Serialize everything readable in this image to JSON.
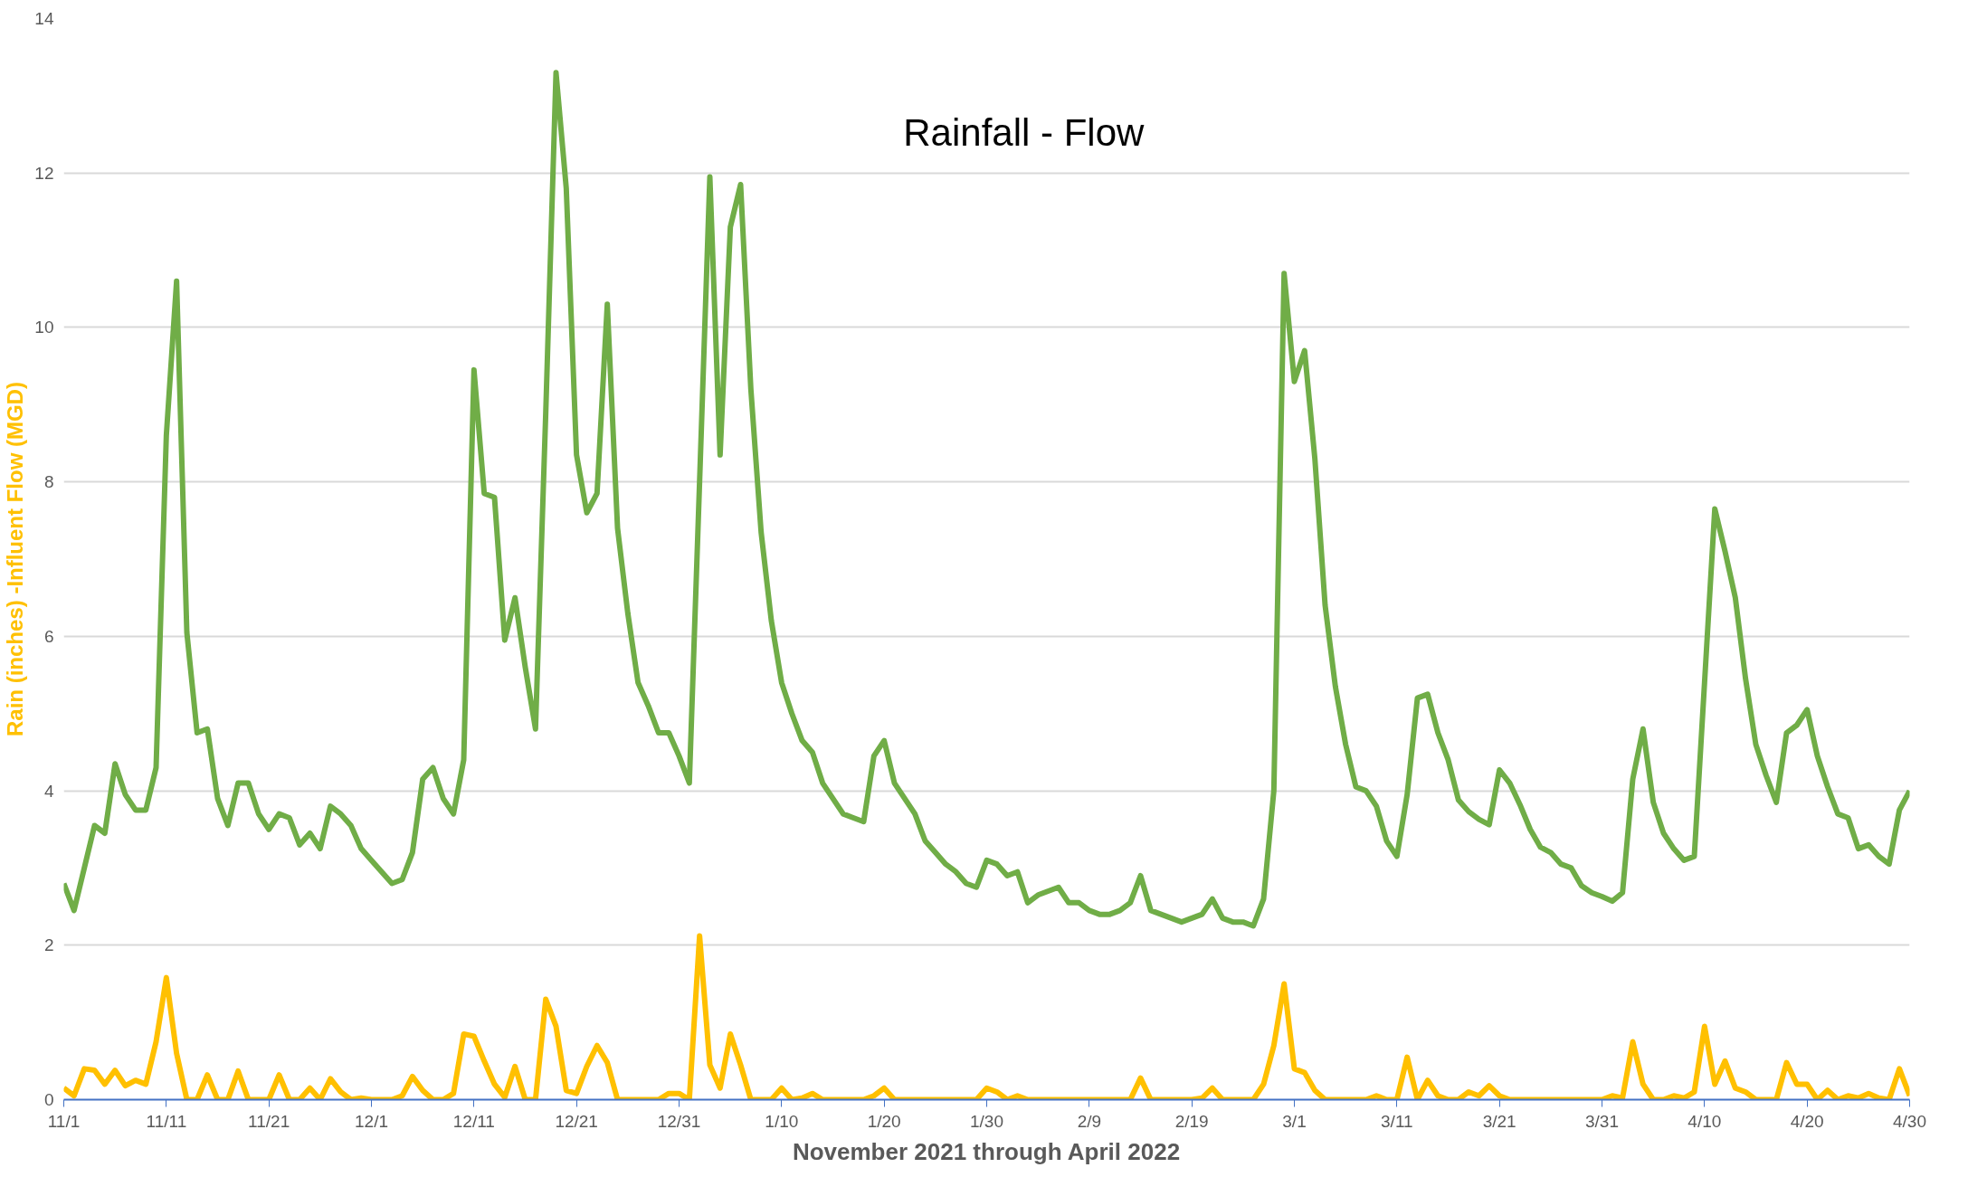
{
  "chart_data": {
    "type": "line",
    "title": "Rainfall - Flow",
    "xlabel": "November 2021 through April 2022",
    "ylabel": "Rain (inches) -Influent Flow (MGD)",
    "x": [
      "2021-11-01",
      "2021-11-02",
      "2021-11-03",
      "2021-11-04",
      "2021-11-05",
      "2021-11-06",
      "2021-11-07",
      "2021-11-08",
      "2021-11-09",
      "2021-11-10",
      "2021-11-11",
      "2021-11-12",
      "2021-11-13",
      "2021-11-14",
      "2021-11-15",
      "2021-11-16",
      "2021-11-17",
      "2021-11-18",
      "2021-11-19",
      "2021-11-20",
      "2021-11-21",
      "2021-11-22",
      "2021-11-23",
      "2021-11-24",
      "2021-11-25",
      "2021-11-26",
      "2021-11-27",
      "2021-11-28",
      "2021-11-29",
      "2021-11-30",
      "2021-12-01",
      "2021-12-02",
      "2021-12-03",
      "2021-12-04",
      "2021-12-05",
      "2021-12-06",
      "2021-12-07",
      "2021-12-08",
      "2021-12-09",
      "2021-12-10",
      "2021-12-11",
      "2021-12-12",
      "2021-12-13",
      "2021-12-14",
      "2021-12-15",
      "2021-12-16",
      "2021-12-17",
      "2021-12-18",
      "2021-12-19",
      "2021-12-20",
      "2021-12-21",
      "2021-12-22",
      "2021-12-23",
      "2021-12-24",
      "2021-12-25",
      "2021-12-26",
      "2021-12-27",
      "2021-12-28",
      "2021-12-29",
      "2021-12-30",
      "2021-12-31",
      "2022-01-01",
      "2022-01-02",
      "2022-01-03",
      "2022-01-04",
      "2022-01-05",
      "2022-01-06",
      "2022-01-07",
      "2022-01-08",
      "2022-01-09",
      "2022-01-10",
      "2022-01-11",
      "2022-01-12",
      "2022-01-13",
      "2022-01-14",
      "2022-01-15",
      "2022-01-16",
      "2022-01-17",
      "2022-01-18",
      "2022-01-19",
      "2022-01-20",
      "2022-01-21",
      "2022-01-22",
      "2022-01-23",
      "2022-01-24",
      "2022-01-25",
      "2022-01-26",
      "2022-01-27",
      "2022-01-28",
      "2022-01-29",
      "2022-01-30",
      "2022-01-31",
      "2022-02-01",
      "2022-02-02",
      "2022-02-03",
      "2022-02-04",
      "2022-02-05",
      "2022-02-06",
      "2022-02-07",
      "2022-02-08",
      "2022-02-09",
      "2022-02-10",
      "2022-02-11",
      "2022-02-12",
      "2022-02-13",
      "2022-02-14",
      "2022-02-15",
      "2022-02-16",
      "2022-02-17",
      "2022-02-18",
      "2022-02-19",
      "2022-02-20",
      "2022-02-21",
      "2022-02-22",
      "2022-02-23",
      "2022-02-24",
      "2022-02-25",
      "2022-02-26",
      "2022-02-27",
      "2022-02-28",
      "2022-03-01",
      "2022-03-02",
      "2022-03-03",
      "2022-03-04",
      "2022-03-05",
      "2022-03-06",
      "2022-03-07",
      "2022-03-08",
      "2022-03-09",
      "2022-03-10",
      "2022-03-11",
      "2022-03-12",
      "2022-03-13",
      "2022-03-14",
      "2022-03-15",
      "2022-03-16",
      "2022-03-17",
      "2022-03-18",
      "2022-03-19",
      "2022-03-20",
      "2022-03-21",
      "2022-03-22",
      "2022-03-23",
      "2022-03-24",
      "2022-03-25",
      "2022-03-26",
      "2022-03-27",
      "2022-03-28",
      "2022-03-29",
      "2022-03-30",
      "2022-03-31",
      "2022-04-01",
      "2022-04-02",
      "2022-04-03",
      "2022-04-04",
      "2022-04-05",
      "2022-04-06",
      "2022-04-07",
      "2022-04-08",
      "2022-04-09",
      "2022-04-10",
      "2022-04-11",
      "2022-04-12",
      "2022-04-13",
      "2022-04-14",
      "2022-04-15",
      "2022-04-16",
      "2022-04-17",
      "2022-04-18",
      "2022-04-19",
      "2022-04-20",
      "2022-04-21",
      "2022-04-22",
      "2022-04-23",
      "2022-04-24",
      "2022-04-25",
      "2022-04-26",
      "2022-04-27",
      "2022-04-28",
      "2022-04-29",
      "2022-04-30"
    ],
    "series": [
      {
        "color": "#70ad47",
        "values": [
          2.8,
          2.45,
          3.0,
          3.55,
          3.45,
          4.35,
          3.95,
          3.75,
          3.75,
          4.3,
          8.6,
          10.6,
          6.05,
          4.75,
          4.8,
          3.9,
          3.55,
          4.1,
          4.1,
          3.7,
          3.5,
          3.7,
          3.65,
          3.3,
          3.45,
          3.25,
          3.8,
          3.7,
          3.55,
          3.25,
          3.1,
          2.95,
          2.8,
          2.85,
          3.2,
          4.15,
          4.3,
          3.9,
          3.7,
          4.4,
          9.45,
          7.85,
          7.8,
          5.95,
          6.5,
          5.6,
          4.8,
          8.9,
          13.3,
          11.8,
          8.35,
          7.6,
          7.85,
          10.3,
          7.4,
          6.3,
          5.4,
          5.1,
          4.75,
          4.75,
          4.45,
          4.1,
          8.0,
          11.95,
          8.35,
          11.3,
          11.85,
          9.2,
          7.35,
          6.2,
          5.4,
          5.0,
          4.65,
          4.5,
          4.1,
          3.9,
          3.7,
          3.65,
          3.6,
          4.45,
          4.65,
          4.1,
          3.9,
          3.7,
          3.35,
          3.2,
          3.05,
          2.95,
          2.8,
          2.75,
          3.1,
          3.05,
          2.9,
          2.95,
          2.55,
          2.65,
          2.7,
          2.75,
          2.55,
          2.55,
          2.45,
          2.4,
          2.4,
          2.45,
          2.55,
          2.9,
          2.45,
          2.4,
          2.35,
          2.3,
          2.35,
          2.4,
          2.6,
          2.35,
          2.3,
          2.3,
          2.25,
          2.6,
          4.0,
          10.7,
          9.3,
          9.7,
          8.3,
          6.4,
          5.35,
          4.6,
          4.05,
          4.0,
          3.8,
          3.35,
          3.15,
          3.95,
          5.2,
          5.25,
          4.75,
          4.4,
          3.88,
          3.73,
          3.63,
          3.56,
          4.27,
          4.1,
          3.82,
          3.5,
          3.27,
          3.2,
          3.05,
          3.0,
          2.77,
          2.68,
          2.63,
          2.57,
          2.68,
          4.15,
          4.8,
          3.85,
          3.45,
          3.25,
          3.1,
          3.15,
          5.4,
          7.65,
          7.1,
          6.5,
          5.45,
          4.6,
          4.2,
          3.85,
          4.75,
          4.85,
          5.05,
          4.45,
          4.05,
          3.7,
          3.65,
          3.25,
          3.3,
          3.15,
          3.05,
          3.75,
          4.0
        ]
      },
      {
        "color": "#ffc000",
        "values": [
          0.15,
          0.05,
          0.4,
          0.38,
          0.2,
          0.38,
          0.18,
          0.25,
          0.2,
          0.75,
          1.58,
          0.6,
          0,
          0,
          0.32,
          0,
          0,
          0.37,
          0,
          0,
          0,
          0.32,
          0,
          0,
          0.15,
          0,
          0.27,
          0.1,
          0,
          0.02,
          0,
          0,
          0,
          0.05,
          0.3,
          0.12,
          0,
          0,
          0.08,
          0.85,
          0.82,
          0.5,
          0.2,
          0.03,
          0.43,
          0,
          0,
          1.3,
          0.95,
          0.12,
          0.08,
          0.43,
          0.7,
          0.48,
          0,
          0,
          0,
          0,
          0,
          0.08,
          0.08,
          0,
          2.12,
          0.45,
          0.15,
          0.85,
          0.45,
          0,
          0,
          0,
          0.15,
          0,
          0.02,
          0.08,
          0,
          0,
          0,
          0,
          0,
          0.05,
          0.15,
          0,
          0,
          0,
          0,
          0,
          0,
          0,
          0,
          0,
          0.15,
          0.1,
          0,
          0.05,
          0,
          0,
          0,
          0,
          0,
          0,
          0,
          0,
          0,
          0,
          0,
          0.28,
          0,
          0,
          0,
          0,
          0,
          0.02,
          0.15,
          0,
          0,
          0,
          0,
          0.2,
          0.7,
          1.5,
          0.4,
          0.35,
          0.12,
          0,
          0,
          0,
          0,
          0,
          0.05,
          0,
          0,
          0.55,
          0,
          0.25,
          0.05,
          0,
          0,
          0.1,
          0.05,
          0.18,
          0.05,
          0,
          0,
          0,
          0,
          0,
          0,
          0,
          0,
          0,
          0,
          0.05,
          0.02,
          0.75,
          0.2,
          0,
          0,
          0.05,
          0.02,
          0.1,
          0.95,
          0.2,
          0.5,
          0.15,
          0.1,
          0,
          0,
          0,
          0.48,
          0.2,
          0.2,
          0,
          0.12,
          0,
          0.05,
          0.02,
          0.08,
          0.02,
          0,
          0.4,
          0.05
        ]
      }
    ],
    "xlim": [
      "2021-11-01",
      "2022-04-30"
    ],
    "xticks": [
      {
        "value": "2021-11-01",
        "label": "11/1"
      },
      {
        "value": "2021-11-11",
        "label": "11/11"
      },
      {
        "value": "2021-11-21",
        "label": "11/21"
      },
      {
        "value": "2021-12-01",
        "label": "12/1"
      },
      {
        "value": "2021-12-11",
        "label": "12/11"
      },
      {
        "value": "2021-12-21",
        "label": "12/21"
      },
      {
        "value": "2021-12-31",
        "label": "12/31"
      },
      {
        "value": "2022-01-10",
        "label": "1/10"
      },
      {
        "value": "2022-01-20",
        "label": "1/20"
      },
      {
        "value": "2022-01-30",
        "label": "1/30"
      },
      {
        "value": "2022-02-09",
        "label": "2/9"
      },
      {
        "value": "2022-02-19",
        "label": "2/19"
      },
      {
        "value": "2022-03-01",
        "label": "3/1"
      },
      {
        "value": "2022-03-11",
        "label": "3/11"
      },
      {
        "value": "2022-03-21",
        "label": "3/21"
      },
      {
        "value": "2022-03-31",
        "label": "3/31"
      },
      {
        "value": "2022-04-10",
        "label": "4/10"
      },
      {
        "value": "2022-04-20",
        "label": "4/20"
      },
      {
        "value": "2022-04-30",
        "label": "4/30"
      }
    ],
    "ylim": [
      0,
      14
    ],
    "yticks": [
      0,
      2,
      4,
      6,
      8,
      10,
      12,
      14
    ],
    "grid": "y",
    "marker": "none",
    "line_style": "solid"
  }
}
